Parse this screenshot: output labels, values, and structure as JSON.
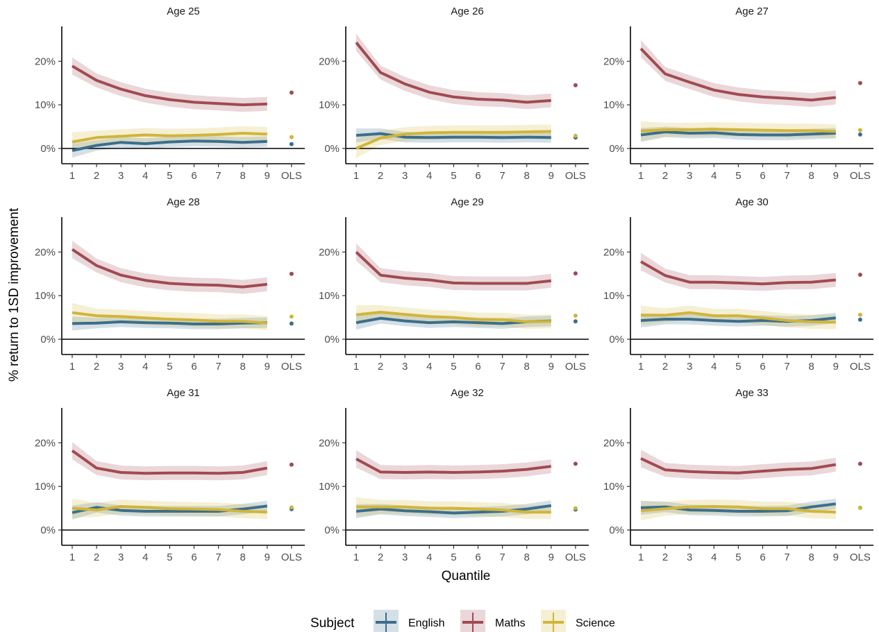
{
  "chart_data": {
    "type": "line",
    "facets": [
      "Age 25",
      "Age 26",
      "Age 27",
      "Age 28",
      "Age 29",
      "Age 30",
      "Age 31",
      "Age 32",
      "Age 33"
    ],
    "x_categories": [
      "1",
      "2",
      "3",
      "4",
      "5",
      "6",
      "7",
      "8",
      "9",
      "OLS"
    ],
    "xlabel": "Quantile",
    "ylabel": "% return to 1SD improvement",
    "y_ticks": [
      "0%",
      "10%",
      "20%"
    ],
    "ylim": [
      -3.5,
      28
    ],
    "legend": {
      "title": "Subject",
      "position": "bottom",
      "entries": [
        "English",
        "Maths",
        "Science"
      ]
    },
    "colors": {
      "English": "#3c6e8c",
      "Maths": "#a14a52",
      "Science": "#d1b53b"
    },
    "panels": [
      {
        "title": "Age 25",
        "series": [
          {
            "name": "English",
            "values": [
              -0.5,
              0.7,
              1.4,
              1.1,
              1.5,
              1.7,
              1.6,
              1.4,
              1.6
            ],
            "ols": 1.0
          },
          {
            "name": "Maths",
            "values": [
              18.9,
              15.6,
              13.6,
              12.1,
              11.2,
              10.6,
              10.3,
              10.0,
              10.2
            ],
            "ols": 12.8
          },
          {
            "name": "Science",
            "values": [
              1.5,
              2.5,
              2.8,
              3.1,
              2.9,
              3.0,
              3.2,
              3.5,
              3.3
            ],
            "ols": 2.6
          }
        ]
      },
      {
        "title": "Age 26",
        "series": [
          {
            "name": "English",
            "values": [
              3.0,
              3.4,
              2.6,
              2.5,
              2.6,
              2.6,
              2.5,
              2.6,
              2.5
            ],
            "ols": 2.5
          },
          {
            "name": "Maths",
            "values": [
              24.3,
              17.4,
              14.8,
              12.9,
              11.8,
              11.3,
              11.1,
              10.6,
              11.0
            ],
            "ols": 14.5
          },
          {
            "name": "Science",
            "values": [
              0.0,
              2.4,
              3.3,
              3.6,
              3.7,
              3.7,
              3.7,
              3.8,
              3.9
            ],
            "ols": 2.9
          }
        ]
      },
      {
        "title": "Age 27",
        "series": [
          {
            "name": "English",
            "values": [
              3.1,
              3.8,
              3.5,
              3.6,
              3.2,
              3.1,
              3.1,
              3.3,
              3.5
            ],
            "ols": 3.2
          },
          {
            "name": "Maths",
            "values": [
              22.9,
              17.1,
              15.2,
              13.4,
              12.4,
              11.8,
              11.5,
              11.1,
              11.7
            ],
            "ols": 15.0
          },
          {
            "name": "Science",
            "values": [
              4.0,
              4.3,
              4.3,
              4.4,
              4.3,
              4.2,
              4.1,
              4.1,
              3.9
            ],
            "ols": 4.2
          }
        ]
      },
      {
        "title": "Age 28",
        "series": [
          {
            "name": "English",
            "values": [
              3.6,
              3.7,
              4.0,
              3.8,
              3.7,
              3.5,
              3.5,
              3.7,
              3.8
            ],
            "ols": 3.6
          },
          {
            "name": "Maths",
            "values": [
              20.6,
              16.9,
              14.7,
              13.5,
              12.8,
              12.5,
              12.4,
              12.0,
              12.6
            ],
            "ols": 15.0
          },
          {
            "name": "Science",
            "values": [
              6.1,
              5.4,
              5.2,
              4.9,
              4.6,
              4.4,
              4.1,
              4.1,
              3.7
            ],
            "ols": 5.2
          }
        ]
      },
      {
        "title": "Age 29",
        "series": [
          {
            "name": "English",
            "values": [
              3.8,
              4.8,
              4.2,
              3.8,
              4.0,
              3.8,
              3.6,
              4.0,
              4.2
            ],
            "ols": 4.1
          },
          {
            "name": "Maths",
            "values": [
              20.0,
              14.7,
              14.0,
              13.6,
              12.9,
              12.8,
              12.8,
              12.8,
              13.4
            ],
            "ols": 15.1
          },
          {
            "name": "Science",
            "values": [
              5.6,
              6.2,
              5.7,
              5.2,
              5.0,
              4.5,
              4.5,
              4.0,
              4.1
            ],
            "ols": 5.4
          }
        ]
      },
      {
        "title": "Age 30",
        "series": [
          {
            "name": "English",
            "values": [
              4.3,
              4.6,
              4.6,
              4.3,
              4.1,
              4.3,
              4.1,
              4.3,
              4.9
            ],
            "ols": 4.5
          },
          {
            "name": "Maths",
            "values": [
              17.8,
              14.6,
              13.1,
              13.1,
              12.9,
              12.7,
              13.0,
              13.1,
              13.6
            ],
            "ols": 14.8
          },
          {
            "name": "Science",
            "values": [
              5.5,
              5.5,
              6.1,
              5.4,
              5.4,
              4.9,
              4.3,
              4.0,
              3.9
            ],
            "ols": 5.6
          }
        ]
      },
      {
        "title": "Age 31",
        "series": [
          {
            "name": "English",
            "values": [
              4.0,
              5.2,
              4.5,
              4.3,
              4.3,
              4.3,
              4.3,
              4.8,
              5.5
            ],
            "ols": 4.8
          },
          {
            "name": "Maths",
            "values": [
              18.2,
              14.2,
              13.2,
              13.0,
              13.1,
              13.1,
              13.0,
              13.2,
              14.2
            ],
            "ols": 15.0
          },
          {
            "name": "Science",
            "values": [
              5.0,
              4.6,
              5.4,
              5.2,
              4.9,
              4.8,
              4.7,
              4.3,
              4.1
            ],
            "ols": 5.2
          }
        ]
      },
      {
        "title": "Age 32",
        "series": [
          {
            "name": "English",
            "values": [
              4.3,
              4.8,
              4.4,
              4.2,
              3.9,
              4.1,
              4.3,
              4.8,
              5.6
            ],
            "ols": 4.7
          },
          {
            "name": "Maths",
            "values": [
              16.3,
              13.3,
              13.2,
              13.3,
              13.2,
              13.3,
              13.5,
              13.9,
              14.6
            ],
            "ols": 15.2
          },
          {
            "name": "Science",
            "values": [
              5.3,
              5.3,
              5.3,
              5.0,
              5.0,
              4.8,
              4.6,
              4.1,
              4.1
            ],
            "ols": 5.0
          }
        ]
      },
      {
        "title": "Age 33",
        "series": [
          {
            "name": "English",
            "values": [
              5.1,
              5.3,
              4.6,
              4.5,
              4.3,
              4.3,
              4.4,
              5.3,
              6.0
            ],
            "ols": 5.1
          },
          {
            "name": "Maths",
            "values": [
              16.4,
              13.8,
              13.4,
              13.2,
              13.1,
              13.5,
              13.9,
              14.1,
              15.0
            ],
            "ols": 15.2
          },
          {
            "name": "Science",
            "values": [
              4.4,
              4.9,
              5.3,
              5.4,
              5.3,
              4.9,
              4.9,
              4.3,
              4.1
            ],
            "ols": 5.1
          }
        ]
      }
    ]
  }
}
